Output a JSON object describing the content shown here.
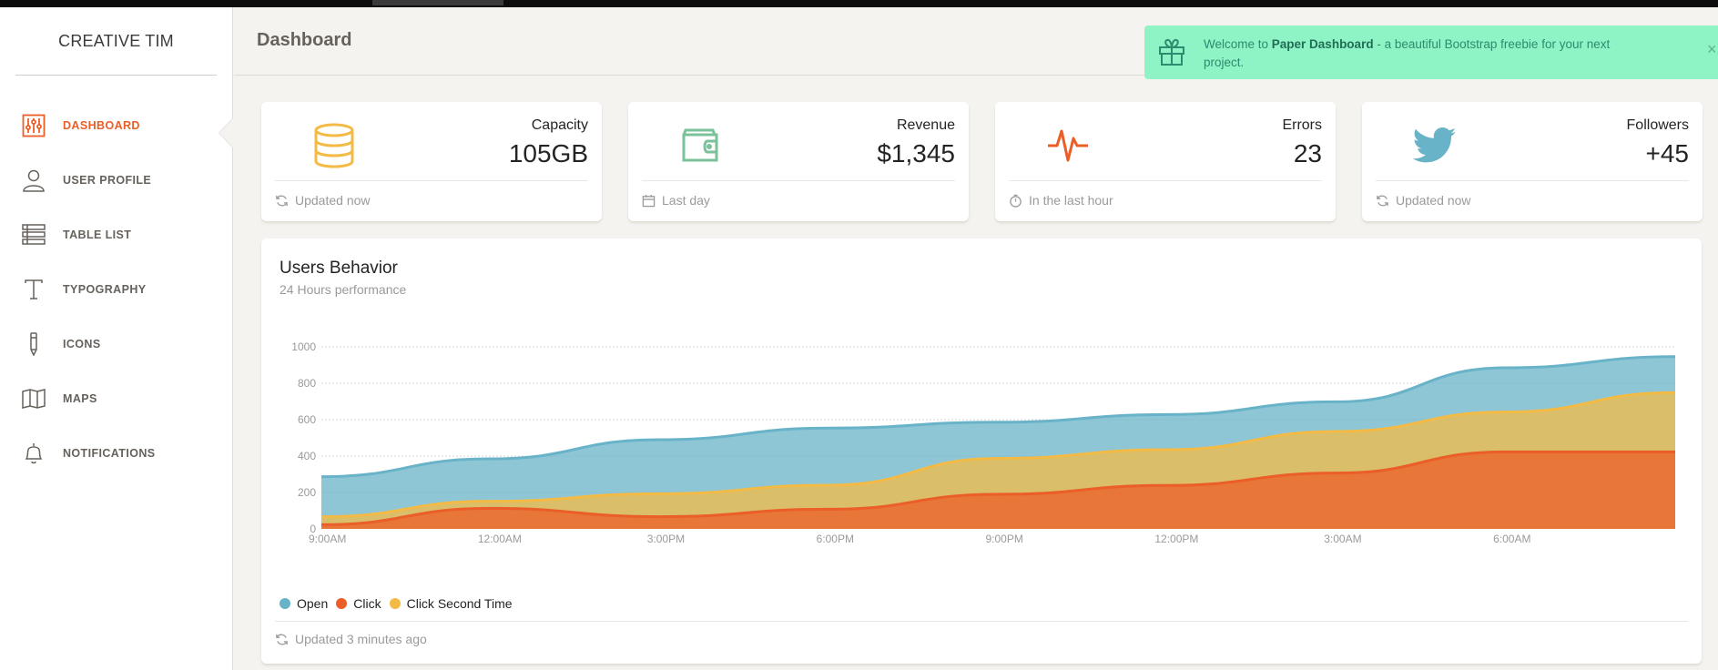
{
  "brand": "CREATIVE TIM",
  "header": {
    "title": "Dashboard"
  },
  "sidebar": {
    "items": [
      {
        "label": "DASHBOARD",
        "icon": "sliders-icon",
        "active": true
      },
      {
        "label": "USER PROFILE",
        "icon": "user-icon",
        "active": false
      },
      {
        "label": "TABLE LIST",
        "icon": "list-icon",
        "active": false
      },
      {
        "label": "TYPOGRAPHY",
        "icon": "text-icon",
        "active": false
      },
      {
        "label": "ICONS",
        "icon": "pencil-icon",
        "active": false
      },
      {
        "label": "MAPS",
        "icon": "map-icon",
        "active": false
      },
      {
        "label": "NOTIFICATIONS",
        "icon": "bell-icon",
        "active": false
      }
    ]
  },
  "notification": {
    "prefix": "Welcome to ",
    "bold": "Paper Dashboard",
    "suffix": " - a beautiful Bootstrap freebie for your next project.",
    "close": "×",
    "icon": "gift-icon"
  },
  "stats": [
    {
      "title": "Capacity",
      "value": "105GB",
      "footer": "Updated now",
      "icon": "database-icon",
      "footer_icon": "reload-icon",
      "color": "#f3bb45"
    },
    {
      "title": "Revenue",
      "value": "$1,345",
      "footer": "Last day",
      "icon": "wallet-icon",
      "footer_icon": "calendar-icon",
      "color": "#7ac29a"
    },
    {
      "title": "Errors",
      "value": "23",
      "footer": "In the last hour",
      "icon": "pulse-icon",
      "footer_icon": "timer-icon",
      "color": "#eb5e28"
    },
    {
      "title": "Followers",
      "value": "+45",
      "footer": "Updated now",
      "icon": "twitter-icon",
      "footer_icon": "reload-icon",
      "color": "#68b3c8"
    }
  ],
  "chart": {
    "title": "Users Behavior",
    "subtitle": "24 Hours performance",
    "footer": "Updated 3 minutes ago",
    "footer_icon": "reload-icon"
  },
  "chart_data": {
    "type": "area",
    "x": [
      "9:00AM",
      "12:00AM",
      "3:00PM",
      "6:00PM",
      "9:00PM",
      "12:00PM",
      "3:00AM",
      "6:00AM",
      ""
    ],
    "ylim": [
      0,
      1000
    ],
    "yticks": [
      0,
      200,
      400,
      600,
      800,
      1000
    ],
    "grid": true,
    "legend_position": "bottom-left",
    "series": [
      {
        "name": "Open",
        "color": "#68b3c8",
        "values": [
          287,
          385,
          490,
          554,
          586,
          628,
          698,
          885,
          946
        ]
      },
      {
        "name": "Click Second Time",
        "color": "#f3bb45",
        "values": [
          67,
          152,
          193,
          240,
          387,
          435,
          535,
          642,
          749
        ]
      },
      {
        "name": "Click",
        "color": "#eb5e28",
        "values": [
          23,
          113,
          67,
          108,
          190,
          239,
          307,
          423,
          423
        ]
      }
    ],
    "legend": [
      {
        "name": "Open",
        "color": "#68b3c8"
      },
      {
        "name": "Click",
        "color": "#eb5e28"
      },
      {
        "name": "Click Second Time",
        "color": "#f3bb45"
      }
    ]
  }
}
